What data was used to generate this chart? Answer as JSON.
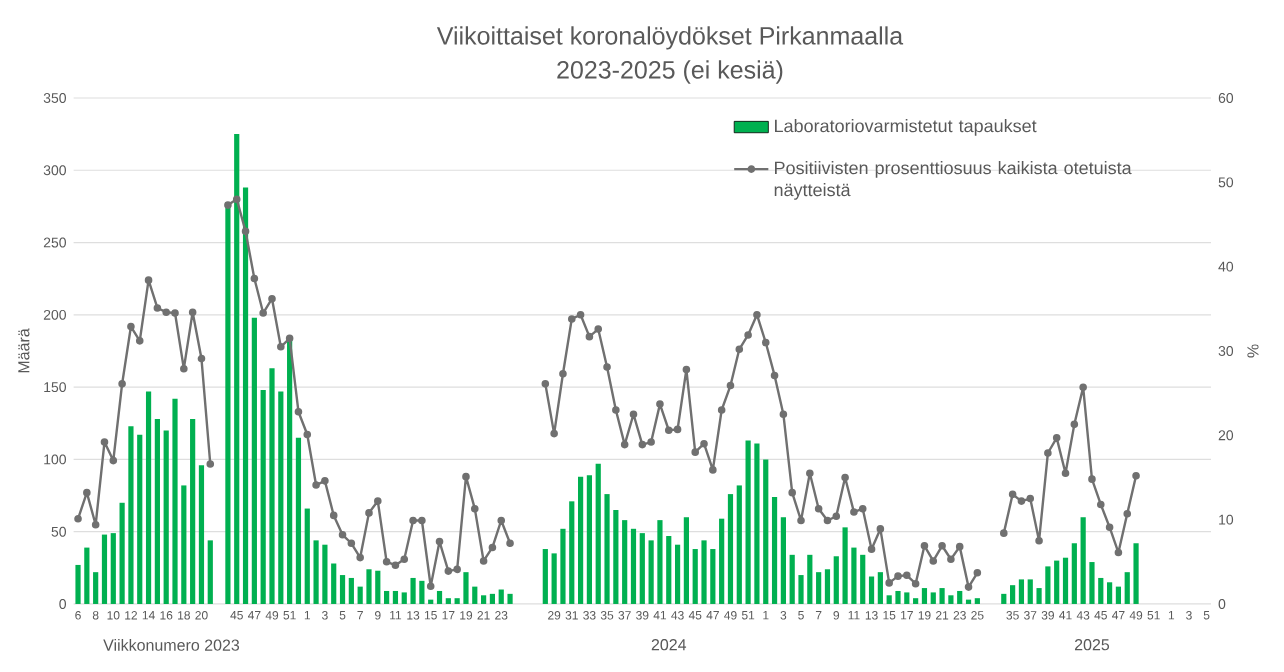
{
  "chart_data": {
    "type": "bar",
    "title": "Viikoittaiset koronalöydökset Pirkanmaalla",
    "subtitle": "2023-2025  (ei kesiä)",
    "ylabel": "Määrä",
    "y2label": "%",
    "annotations": [
      "Viikkonumero 2023",
      "2024",
      "2025"
    ],
    "categories": [
      "6",
      null,
      "8",
      null,
      "10",
      null,
      "12",
      null,
      "14",
      null,
      "16",
      null,
      "18",
      null,
      "20",
      null,
      null,
      null,
      "45",
      null,
      "47",
      null,
      "49",
      null,
      "51",
      null,
      "1",
      null,
      "3",
      null,
      "5",
      null,
      "7",
      null,
      "9",
      null,
      "11",
      null,
      "13",
      null,
      "15",
      null,
      "17",
      null,
      "19",
      null,
      "21",
      null,
      "23",
      null,
      null,
      null,
      null,
      null,
      "29",
      null,
      "31",
      null,
      "33",
      null,
      "35",
      null,
      "37",
      null,
      "39",
      null,
      "41",
      null,
      "43",
      null,
      "45",
      null,
      "47",
      null,
      "49",
      null,
      "51",
      null,
      "1",
      null,
      "3",
      null,
      "5",
      null,
      "7",
      null,
      "9",
      null,
      "11",
      null,
      "13",
      null,
      "15",
      null,
      "17",
      null,
      "19",
      null,
      "21",
      null,
      "23",
      null,
      "25",
      null,
      null,
      null,
      "35",
      null,
      "37",
      null,
      "39",
      null,
      "41",
      null,
      "43",
      null,
      "45",
      null,
      "47",
      null,
      "49",
      null,
      "51",
      null,
      "1",
      null,
      "3",
      null,
      "5"
    ],
    "series": [
      {
        "name": "Laboratoriovarmistetut tapaukset",
        "color": "#00b050",
        "values": [
          27,
          39,
          22,
          48,
          49,
          70,
          123,
          117,
          147,
          128,
          120,
          142,
          82,
          128,
          96,
          44,
          null,
          278,
          325,
          288,
          198,
          148,
          163,
          147,
          183,
          115,
          66,
          44,
          41,
          28,
          20,
          18,
          12,
          24,
          23,
          9,
          9,
          8,
          18,
          16,
          3,
          9,
          4,
          4,
          22,
          12,
          6,
          7,
          10,
          7,
          null,
          null,
          null,
          38,
          35,
          52,
          71,
          88,
          89,
          97,
          76,
          65,
          58,
          52,
          49,
          44,
          58,
          47,
          41,
          60,
          38,
          44,
          38,
          59,
          76,
          82,
          113,
          111,
          100,
          74,
          60,
          34,
          20,
          34,
          22,
          24,
          33,
          53,
          39,
          34,
          19,
          22,
          6,
          9,
          8,
          4,
          11,
          8,
          11,
          6,
          9,
          3,
          4,
          null,
          null,
          7,
          13,
          17,
          17,
          11,
          26,
          30,
          32,
          42,
          60,
          29,
          18,
          15,
          12,
          22,
          42,
          null,
          null,
          null,
          null,
          null,
          null,
          null,
          null
        ]
      },
      {
        "name": "Positiivisten prosenttiosuus kaikista otetuista näytteistä",
        "type": "line",
        "axis": "y2",
        "color": "#707070",
        "marker": "circle",
        "values": [
          10.1,
          13.2,
          9.4,
          19.2,
          17.0,
          26.1,
          32.9,
          31.2,
          38.4,
          35.1,
          34.6,
          34.5,
          27.9,
          34.6,
          29.1,
          16.6,
          null,
          47.3,
          48.0,
          44.2,
          38.6,
          34.5,
          36.2,
          30.5,
          31.5,
          22.8,
          20.1,
          14.1,
          14.6,
          10.5,
          8.2,
          7.2,
          5.5,
          10.8,
          12.2,
          5.0,
          4.6,
          5.3,
          9.9,
          9.9,
          2.1,
          7.4,
          3.9,
          4.1,
          15.1,
          11.3,
          5.1,
          6.7,
          9.9,
          7.2,
          null,
          null,
          null,
          26.1,
          20.2,
          27.3,
          33.8,
          34.3,
          31.7,
          32.6,
          28.1,
          23.0,
          18.9,
          22.5,
          18.9,
          19.2,
          23.7,
          20.6,
          20.7,
          27.8,
          18.0,
          19.0,
          15.9,
          23.0,
          25.9,
          30.2,
          31.9,
          34.3,
          31.0,
          27.1,
          22.5,
          13.2,
          9.9,
          15.5,
          11.3,
          9.9,
          10.4,
          15.0,
          10.9,
          11.3,
          6.5,
          8.9,
          2.5,
          3.3,
          3.4,
          2.4,
          6.9,
          5.1,
          6.9,
          5.3,
          6.8,
          2.0,
          3.7,
          null,
          null,
          8.4,
          13.0,
          12.2,
          12.5,
          7.5,
          17.9,
          19.7,
          15.5,
          21.3,
          25.7,
          14.8,
          11.8,
          9.1,
          6.1,
          10.7,
          15.2,
          null,
          null,
          null,
          null,
          null,
          null,
          null,
          null
        ]
      }
    ],
    "ylim": [
      0,
      350
    ],
    "yticks": [
      0,
      50,
      100,
      150,
      200,
      250,
      300,
      350
    ],
    "y2lim": [
      0,
      60
    ],
    "y2ticks": [
      0,
      10,
      20,
      30,
      40,
      50,
      60
    ],
    "grid": "y",
    "legend": "top right"
  }
}
